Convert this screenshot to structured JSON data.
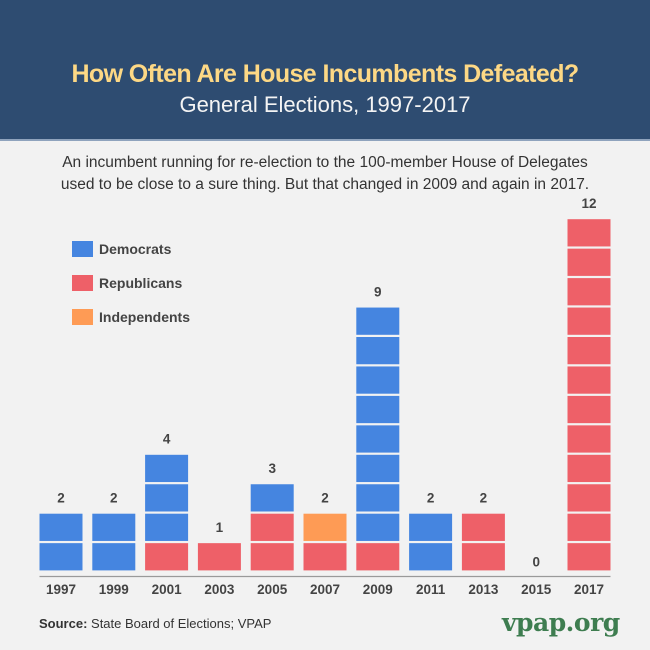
{
  "header": {
    "title": "How Often Are House Incumbents Defeated?",
    "subtitle": "General Elections, 1997-2017"
  },
  "description": {
    "line1": "An incumbent running for re-election to the 100-member House of Delegates",
    "line2": "used to be close to a sure thing. But that changed in 2009 and again in 2017."
  },
  "footer": {
    "source_label": "Source:",
    "source_text": " State Board of Elections; VPAP",
    "logo": "vpap.org"
  },
  "colors": {
    "header_bg": "#2e4c71",
    "title": "#fdd885",
    "democrats": "#4585e0",
    "republicans": "#ee6068",
    "independents": "#fe9b55",
    "logo": "#3e7d50"
  },
  "chart_data": {
    "type": "bar",
    "stacked": true,
    "title": "How Often Are House Incumbents Defeated?",
    "subtitle": "General Elections, 1997-2017",
    "xlabel": "",
    "ylabel": "",
    "ylim": [
      0,
      12
    ],
    "grid": false,
    "legend_position": "top-left",
    "categories": [
      "1997",
      "1999",
      "2001",
      "2003",
      "2005",
      "2007",
      "2009",
      "2011",
      "2013",
      "2015",
      "2017"
    ],
    "series": [
      {
        "name": "Republicans",
        "color": "#ee6068",
        "values": [
          0,
          0,
          1,
          1,
          2,
          1,
          1,
          0,
          2,
          0,
          12
        ]
      },
      {
        "name": "Independents",
        "color": "#fe9b55",
        "values": [
          0,
          0,
          0,
          0,
          0,
          1,
          0,
          0,
          0,
          0,
          0
        ]
      },
      {
        "name": "Democrats",
        "color": "#4585e0",
        "values": [
          2,
          2,
          3,
          0,
          1,
          0,
          8,
          2,
          0,
          0,
          0
        ]
      }
    ],
    "totals": [
      2,
      2,
      4,
      1,
      3,
      2,
      9,
      2,
      2,
      0,
      12
    ],
    "legend": [
      "Democrats",
      "Republicans",
      "Independents"
    ]
  }
}
